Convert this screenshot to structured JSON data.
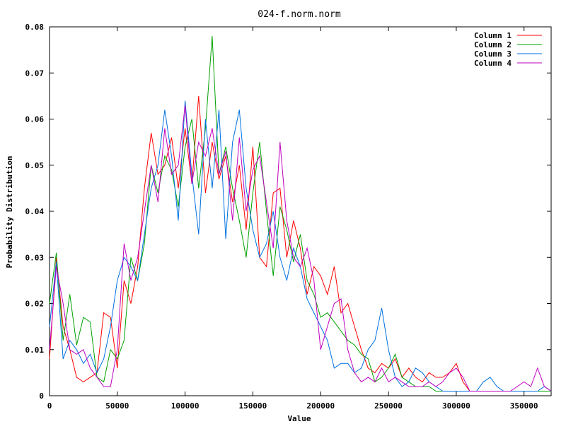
{
  "chart_data": {
    "type": "line",
    "title": "024-f.norm.norm",
    "xlabel": "Value",
    "ylabel": "Probability Distribution",
    "xlim": [
      0,
      370000
    ],
    "ylim": [
      0,
      0.08
    ],
    "xticks": [
      0,
      50000,
      100000,
      150000,
      200000,
      250000,
      300000,
      350000
    ],
    "xtick_labels": [
      "0",
      "50000",
      "100000",
      "150000",
      "200000",
      "250000",
      "300000",
      "350000"
    ],
    "yticks": [
      0,
      0.01,
      0.02,
      0.03,
      0.04,
      0.05,
      0.06,
      0.07,
      0.08
    ],
    "ytick_labels": [
      "0",
      "0.01",
      "0.02",
      "0.03",
      "0.04",
      "0.05",
      "0.06",
      "0.07",
      "0.08"
    ],
    "grid": false,
    "legend_position": "top-right",
    "series": [
      {
        "name": "Column 1",
        "color": "#ff0000",
        "x": [
          0,
          5000,
          10000,
          15000,
          20000,
          25000,
          30000,
          35000,
          40000,
          45000,
          50000,
          55000,
          60000,
          65000,
          70000,
          75000,
          80000,
          85000,
          90000,
          95000,
          100000,
          105000,
          110000,
          115000,
          120000,
          125000,
          130000,
          135000,
          140000,
          145000,
          150000,
          155000,
          160000,
          165000,
          170000,
          175000,
          180000,
          185000,
          190000,
          195000,
          200000,
          205000,
          210000,
          215000,
          220000,
          225000,
          230000,
          235000,
          240000,
          245000,
          250000,
          255000,
          260000,
          265000,
          270000,
          275000,
          280000,
          285000,
          290000,
          295000,
          300000,
          305000,
          310000,
          315000,
          320000,
          325000,
          330000,
          335000,
          340000,
          345000,
          350000,
          355000,
          360000,
          365000,
          370000
        ],
        "values": [
          0.008,
          0.03,
          0.015,
          0.01,
          0.004,
          0.003,
          0.004,
          0.005,
          0.018,
          0.017,
          0.006,
          0.025,
          0.02,
          0.028,
          0.045,
          0.057,
          0.048,
          0.05,
          0.056,
          0.045,
          0.058,
          0.046,
          0.065,
          0.044,
          0.055,
          0.047,
          0.052,
          0.042,
          0.05,
          0.036,
          0.054,
          0.03,
          0.028,
          0.044,
          0.045,
          0.03,
          0.038,
          0.032,
          0.022,
          0.028,
          0.026,
          0.022,
          0.028,
          0.018,
          0.02,
          0.015,
          0.01,
          0.006,
          0.005,
          0.007,
          0.006,
          0.008,
          0.004,
          0.006,
          0.004,
          0.003,
          0.005,
          0.004,
          0.004,
          0.005,
          0.007,
          0.003,
          0.001,
          0.001,
          0.001,
          0.001,
          0.001,
          0.001,
          0.001,
          0.001,
          0.001,
          0.001,
          0.001,
          0.001,
          0.001
        ]
      },
      {
        "name": "Column 2",
        "color": "#00a000",
        "x": [
          0,
          5000,
          10000,
          15000,
          20000,
          25000,
          30000,
          35000,
          40000,
          45000,
          50000,
          55000,
          60000,
          65000,
          70000,
          75000,
          80000,
          85000,
          90000,
          95000,
          100000,
          105000,
          110000,
          115000,
          120000,
          125000,
          130000,
          135000,
          140000,
          145000,
          150000,
          155000,
          160000,
          165000,
          170000,
          175000,
          180000,
          185000,
          190000,
          195000,
          200000,
          205000,
          210000,
          215000,
          220000,
          225000,
          230000,
          235000,
          240000,
          245000,
          250000,
          255000,
          260000,
          265000,
          270000,
          275000,
          280000,
          285000,
          290000,
          295000,
          300000,
          305000,
          310000,
          315000,
          320000,
          325000,
          330000,
          335000,
          340000,
          345000,
          350000,
          355000,
          360000,
          365000,
          370000
        ],
        "values": [
          0.02,
          0.031,
          0.012,
          0.022,
          0.011,
          0.017,
          0.016,
          0.004,
          0.003,
          0.01,
          0.008,
          0.012,
          0.03,
          0.025,
          0.033,
          0.05,
          0.044,
          0.052,
          0.049,
          0.041,
          0.054,
          0.06,
          0.045,
          0.058,
          0.078,
          0.048,
          0.054,
          0.045,
          0.038,
          0.03,
          0.044,
          0.055,
          0.04,
          0.026,
          0.041,
          0.036,
          0.029,
          0.035,
          0.025,
          0.022,
          0.017,
          0.018,
          0.016,
          0.014,
          0.012,
          0.011,
          0.009,
          0.008,
          0.003,
          0.004,
          0.006,
          0.009,
          0.004,
          0.003,
          0.002,
          0.002,
          0.002,
          0.001,
          0.001,
          0.001,
          0.001,
          0.001,
          0.001,
          0.001,
          0.001,
          0.001,
          0.001,
          0.001,
          0.001,
          0.001,
          0.001,
          0.001,
          0.001,
          0.001,
          0.001
        ]
      },
      {
        "name": "Column 3",
        "color": "#0070e0",
        "x": [
          0,
          5000,
          10000,
          15000,
          20000,
          25000,
          30000,
          35000,
          40000,
          45000,
          50000,
          55000,
          60000,
          65000,
          70000,
          75000,
          80000,
          85000,
          90000,
          95000,
          100000,
          105000,
          110000,
          115000,
          120000,
          125000,
          130000,
          135000,
          140000,
          145000,
          150000,
          155000,
          160000,
          165000,
          170000,
          175000,
          180000,
          185000,
          190000,
          195000,
          200000,
          205000,
          210000,
          215000,
          220000,
          225000,
          230000,
          235000,
          240000,
          245000,
          250000,
          255000,
          260000,
          265000,
          270000,
          275000,
          280000,
          285000,
          290000,
          295000,
          300000,
          305000,
          310000,
          315000,
          320000,
          325000,
          330000,
          335000,
          340000,
          345000,
          350000,
          355000,
          360000,
          365000,
          370000
        ],
        "values": [
          0.015,
          0.029,
          0.008,
          0.012,
          0.01,
          0.007,
          0.009,
          0.005,
          0.008,
          0.015,
          0.025,
          0.03,
          0.028,
          0.025,
          0.035,
          0.045,
          0.05,
          0.062,
          0.052,
          0.038,
          0.064,
          0.048,
          0.035,
          0.06,
          0.045,
          0.062,
          0.034,
          0.055,
          0.062,
          0.045,
          0.036,
          0.03,
          0.033,
          0.04,
          0.03,
          0.025,
          0.032,
          0.028,
          0.021,
          0.018,
          0.015,
          0.012,
          0.006,
          0.007,
          0.007,
          0.005,
          0.006,
          0.01,
          0.012,
          0.019,
          0.01,
          0.004,
          0.002,
          0.003,
          0.006,
          0.005,
          0.003,
          0.002,
          0.001,
          0.001,
          0.001,
          0.001,
          0.001,
          0.001,
          0.003,
          0.004,
          0.002,
          0.001,
          0.001,
          0.001,
          0.001,
          0.001,
          0.001,
          0.002,
          0.001
        ]
      },
      {
        "name": "Column 4",
        "color": "#c000c0",
        "x": [
          0,
          5000,
          10000,
          15000,
          20000,
          25000,
          30000,
          35000,
          40000,
          45000,
          50000,
          55000,
          60000,
          65000,
          70000,
          75000,
          80000,
          85000,
          90000,
          95000,
          100000,
          105000,
          110000,
          115000,
          120000,
          125000,
          130000,
          135000,
          140000,
          145000,
          150000,
          155000,
          160000,
          165000,
          170000,
          175000,
          180000,
          185000,
          190000,
          195000,
          200000,
          205000,
          210000,
          215000,
          220000,
          225000,
          230000,
          235000,
          240000,
          245000,
          250000,
          255000,
          260000,
          265000,
          270000,
          275000,
          280000,
          285000,
          290000,
          295000,
          300000,
          305000,
          310000,
          315000,
          320000,
          325000,
          330000,
          335000,
          340000,
          345000,
          350000,
          355000,
          360000,
          365000,
          370000
        ],
        "values": [
          0.01,
          0.028,
          0.02,
          0.01,
          0.009,
          0.01,
          0.006,
          0.004,
          0.002,
          0.002,
          0.01,
          0.033,
          0.025,
          0.03,
          0.04,
          0.05,
          0.042,
          0.058,
          0.048,
          0.05,
          0.063,
          0.046,
          0.055,
          0.052,
          0.058,
          0.048,
          0.053,
          0.038,
          0.056,
          0.04,
          0.049,
          0.052,
          0.042,
          0.032,
          0.055,
          0.038,
          0.03,
          0.028,
          0.032,
          0.025,
          0.01,
          0.015,
          0.02,
          0.021,
          0.01,
          0.005,
          0.003,
          0.004,
          0.003,
          0.006,
          0.003,
          0.004,
          0.003,
          0.002,
          0.002,
          0.002,
          0.003,
          0.002,
          0.003,
          0.005,
          0.006,
          0.004,
          0.001,
          0.001,
          0.001,
          0.001,
          0.001,
          0.001,
          0.001,
          0.002,
          0.003,
          0.002,
          0.006,
          0.002,
          0.001
        ]
      }
    ]
  }
}
